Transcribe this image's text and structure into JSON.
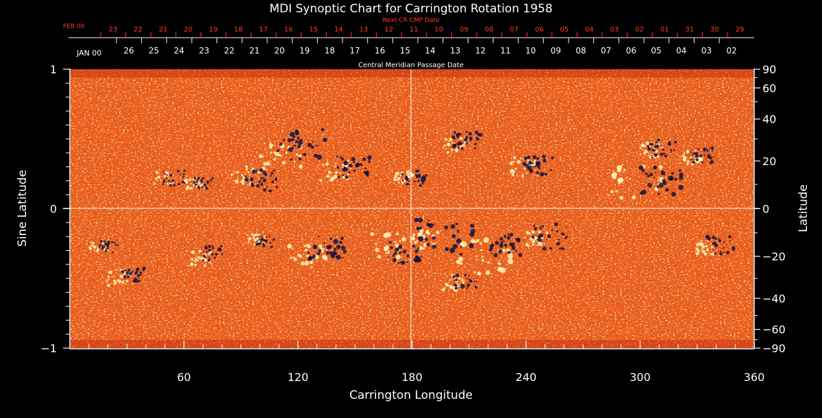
{
  "chart_data": {
    "type": "heatmap",
    "title": "MDI Synoptic Chart for Carrington Rotation 1958",
    "xlabel": "Carrington Longitude",
    "ylabel_left": "Sine Latitude",
    "ylabel_right": "Latitude",
    "xlim": [
      0,
      360
    ],
    "ylim": [
      -1,
      1
    ],
    "x_ticks": [
      "60",
      "120",
      "180",
      "240",
      "300",
      "360"
    ],
    "y_ticks_left": [
      {
        "value": 1,
        "label": "1"
      },
      {
        "value": 0,
        "label": "0"
      },
      {
        "value": -1,
        "label": "−1"
      }
    ],
    "y_ticks_right": [
      {
        "value": 90,
        "label": "90"
      },
      {
        "value": 60,
        "label": "60"
      },
      {
        "value": 40,
        "label": "40"
      },
      {
        "value": 20,
        "label": "20"
      },
      {
        "value": 0,
        "label": "0"
      },
      {
        "value": -20,
        "label": "−20"
      },
      {
        "value": -40,
        "label": "−40"
      },
      {
        "value": -60,
        "label": "−60"
      },
      {
        "value": -90,
        "label": "−90"
      }
    ],
    "cmp_axis": {
      "label": "Central Meridian Passage Date",
      "month_label": "JAN 00",
      "dates": [
        "26",
        "25",
        "24",
        "23",
        "22",
        "21",
        "20",
        "19",
        "18",
        "17",
        "16",
        "15",
        "14",
        "13",
        "12",
        "11",
        "10",
        "09",
        "08",
        "07",
        "06",
        "05",
        "04",
        "03",
        "02"
      ]
    },
    "next_cr_axis": {
      "label": "Next CR CMP Date",
      "month_label": "FEB 00",
      "dates": [
        "23",
        "22",
        "21",
        "20",
        "19",
        "18",
        "17",
        "16",
        "15",
        "14",
        "13",
        "12",
        "11",
        "10",
        "09",
        "08",
        "07",
        "06",
        "05",
        "04",
        "03",
        "02",
        "01",
        "31",
        "30",
        "29"
      ]
    },
    "colors": {
      "background": "#000000",
      "map_base": "#ff5a14",
      "positive_polarity": "#fff6b4",
      "negative_polarity": "#14143c",
      "next_cr_text": "#ff3c28"
    },
    "grid": false,
    "reference_lines": {
      "longitude": 180,
      "latitude": 0
    },
    "active_regions": [
      {
        "lon": 116,
        "lat": 0.38,
        "pos": [
          0.38,
          4.2,
          1.6
        ],
        "neg": [
          0.46,
          5.0,
          1.8
        ]
      },
      {
        "lon": 96,
        "lat": 0.2,
        "pos": [
          0.24,
          3,
          1.2
        ],
        "neg": [
          0.2,
          3.5,
          1.5
        ]
      },
      {
        "lon": 145,
        "lat": 0.26,
        "pos": [
          0.27,
          3.5,
          1.3
        ],
        "neg": [
          0.3,
          3.5,
          1.6
        ]
      },
      {
        "lon": 178,
        "lat": 0.22,
        "pos": [
          0.22,
          2,
          1.2
        ],
        "neg": [
          0.22,
          2.5,
          1.2
        ]
      },
      {
        "lon": 205,
        "lat": 0.47,
        "pos": [
          0.45,
          2.5,
          1.2
        ],
        "neg": [
          0.49,
          3,
          1.4
        ]
      },
      {
        "lon": 243,
        "lat": 0.3,
        "pos": [
          0.3,
          3,
          1.6
        ],
        "neg": [
          0.31,
          3,
          1.6
        ]
      },
      {
        "lon": 305,
        "lat": 0.2,
        "pos": [
          0.19,
          6,
          1.8
        ],
        "neg": [
          0.2,
          4.5,
          1.8
        ]
      },
      {
        "lon": 308,
        "lat": 0.42,
        "pos": [
          0.42,
          2.5,
          1.2
        ],
        "neg": [
          0.43,
          3,
          1.2
        ]
      },
      {
        "lon": 330,
        "lat": 0.36,
        "pos": [
          0.37,
          2.5,
          1.2
        ],
        "neg": [
          0.38,
          2.5,
          1.2
        ]
      },
      {
        "lon": 52,
        "lat": 0.22,
        "pos": [
          0.22,
          2,
          1
        ],
        "neg": [
          0.22,
          2.5,
          1
        ]
      },
      {
        "lon": 68,
        "lat": 0.18,
        "pos": [
          0.18,
          2,
          1
        ],
        "neg": [
          0.18,
          2,
          1
        ]
      },
      {
        "lon": 130,
        "lat": -0.32,
        "pos": [
          -0.34,
          4,
          1.6
        ],
        "neg": [
          -0.28,
          4,
          1.8
        ]
      },
      {
        "lon": 172,
        "lat": -0.28,
        "pos": [
          -0.26,
          4,
          1.6
        ],
        "neg": [
          -0.32,
          3.5,
          1.6
        ]
      },
      {
        "lon": 190,
        "lat": -0.2,
        "pos": [
          -0.22,
          3,
          1.5
        ],
        "neg": [
          -0.2,
          6,
          2
        ]
      },
      {
        "lon": 225,
        "lat": -0.34,
        "pos": [
          -0.34,
          6,
          2
        ],
        "neg": [
          -0.26,
          3.5,
          1.6
        ]
      },
      {
        "lon": 205,
        "lat": -0.52,
        "pos": [
          -0.53,
          2.5,
          1.2
        ],
        "neg": [
          -0.52,
          2.5,
          1.2
        ]
      },
      {
        "lon": 30,
        "lat": -0.48,
        "pos": [
          -0.5,
          3,
          1.2
        ],
        "neg": [
          -0.48,
          2.5,
          1.2
        ]
      },
      {
        "lon": 18,
        "lat": -0.28,
        "pos": [
          -0.26,
          2,
          1
        ],
        "neg": [
          -0.27,
          2,
          1
        ]
      },
      {
        "lon": 72,
        "lat": -0.36,
        "pos": [
          -0.36,
          2.5,
          1.2
        ],
        "neg": [
          -0.32,
          2.5,
          1.2
        ]
      },
      {
        "lon": 248,
        "lat": -0.2,
        "pos": [
          -0.22,
          2.5,
          1.2
        ],
        "neg": [
          -0.2,
          4,
          1.5
        ]
      },
      {
        "lon": 338,
        "lat": -0.28,
        "pos": [
          -0.28,
          2.5,
          1.2
        ],
        "neg": [
          -0.26,
          3,
          1.3
        ]
      },
      {
        "lon": 100,
        "lat": -0.22,
        "pos": [
          -0.22,
          2,
          1
        ],
        "neg": [
          -0.24,
          2,
          1
        ]
      }
    ]
  }
}
